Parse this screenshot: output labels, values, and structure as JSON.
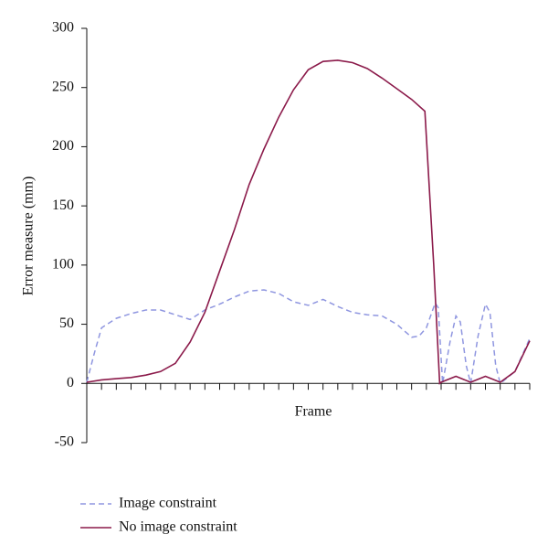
{
  "chart_data": {
    "type": "line",
    "xlabel": "Frame",
    "ylabel": "Error measure (mm)",
    "xlim": [
      0,
      30
    ],
    "ylim": [
      -50,
      300
    ],
    "yticks": [
      -50,
      0,
      50,
      100,
      150,
      200,
      250,
      300
    ],
    "series": [
      {
        "name": "Image constraint",
        "color": "#8f96e0",
        "dash": true,
        "x": [
          0,
          0.5,
          1,
          2,
          3,
          4,
          5,
          6,
          7,
          8,
          9,
          10,
          11,
          12,
          13,
          14,
          15,
          16,
          17,
          18,
          19,
          20,
          21,
          22,
          22.5,
          23,
          23.6,
          23.8,
          24.1,
          24.6,
          25,
          25.3,
          25.7,
          26,
          26.5,
          27,
          27.3,
          27.7,
          28,
          29,
          30
        ],
        "values": [
          1,
          25,
          47,
          55,
          59,
          62,
          62,
          58,
          54,
          62,
          67,
          73,
          78,
          79,
          76,
          69,
          66,
          71,
          65,
          60,
          58,
          57,
          50,
          39,
          40,
          47,
          68,
          64,
          0,
          35,
          57,
          52,
          15,
          0,
          40,
          67,
          60,
          15,
          0,
          10,
          38
        ]
      },
      {
        "name": "No image constraint",
        "color": "#8b1a4a",
        "dash": false,
        "x": [
          0,
          1,
          2,
          3,
          4,
          5,
          6,
          7,
          8,
          9,
          10,
          11,
          12,
          13,
          14,
          15,
          16,
          17,
          18,
          19,
          20,
          21,
          22,
          22.9,
          23.5,
          23.9,
          24,
          25,
          26,
          27,
          28,
          29,
          30
        ],
        "values": [
          1,
          3,
          4,
          5,
          7,
          10,
          17,
          35,
          60,
          95,
          130,
          168,
          198,
          225,
          248,
          265,
          272,
          273,
          271,
          266,
          258,
          249,
          240,
          230,
          100,
          0,
          1,
          6,
          1,
          6,
          1,
          10,
          36
        ]
      }
    ]
  }
}
